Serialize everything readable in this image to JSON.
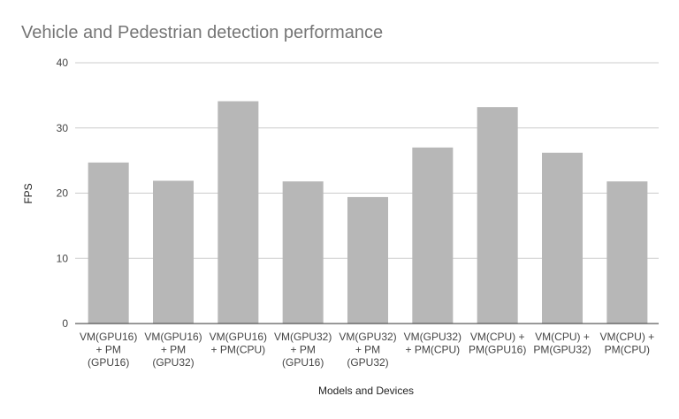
{
  "chart_data": {
    "type": "bar",
    "title": "Vehicle and Pedestrian detection performance",
    "xlabel": "Models and Devices",
    "ylabel": "FPS",
    "ylim": [
      0,
      40
    ],
    "yticks": [
      0,
      10,
      20,
      30,
      40
    ],
    "grid": true,
    "legend": "none",
    "bar_color": "#b7b7b7",
    "categories": [
      [
        "VM(GPU16)",
        "+ PM",
        "(GPU16)"
      ],
      [
        "VM(GPU16)",
        "+ PM",
        "(GPU32)"
      ],
      [
        "VM(GPU16)",
        "+ PM(CPU)"
      ],
      [
        "VM(GPU32)",
        "+ PM",
        "(GPU16)"
      ],
      [
        "VM(GPU32)",
        "+ PM",
        "(GPU32)"
      ],
      [
        "VM(GPU32)",
        "+ PM(CPU)"
      ],
      [
        "VM(CPU) +",
        "PM(GPU16)"
      ],
      [
        "VM(CPU) +",
        "PM(GPU32)"
      ],
      [
        "VM(CPU) +",
        "PM(CPU)"
      ]
    ],
    "values": [
      24.7,
      21.9,
      34.1,
      21.8,
      19.4,
      27.0,
      33.2,
      26.2,
      21.8
    ]
  }
}
